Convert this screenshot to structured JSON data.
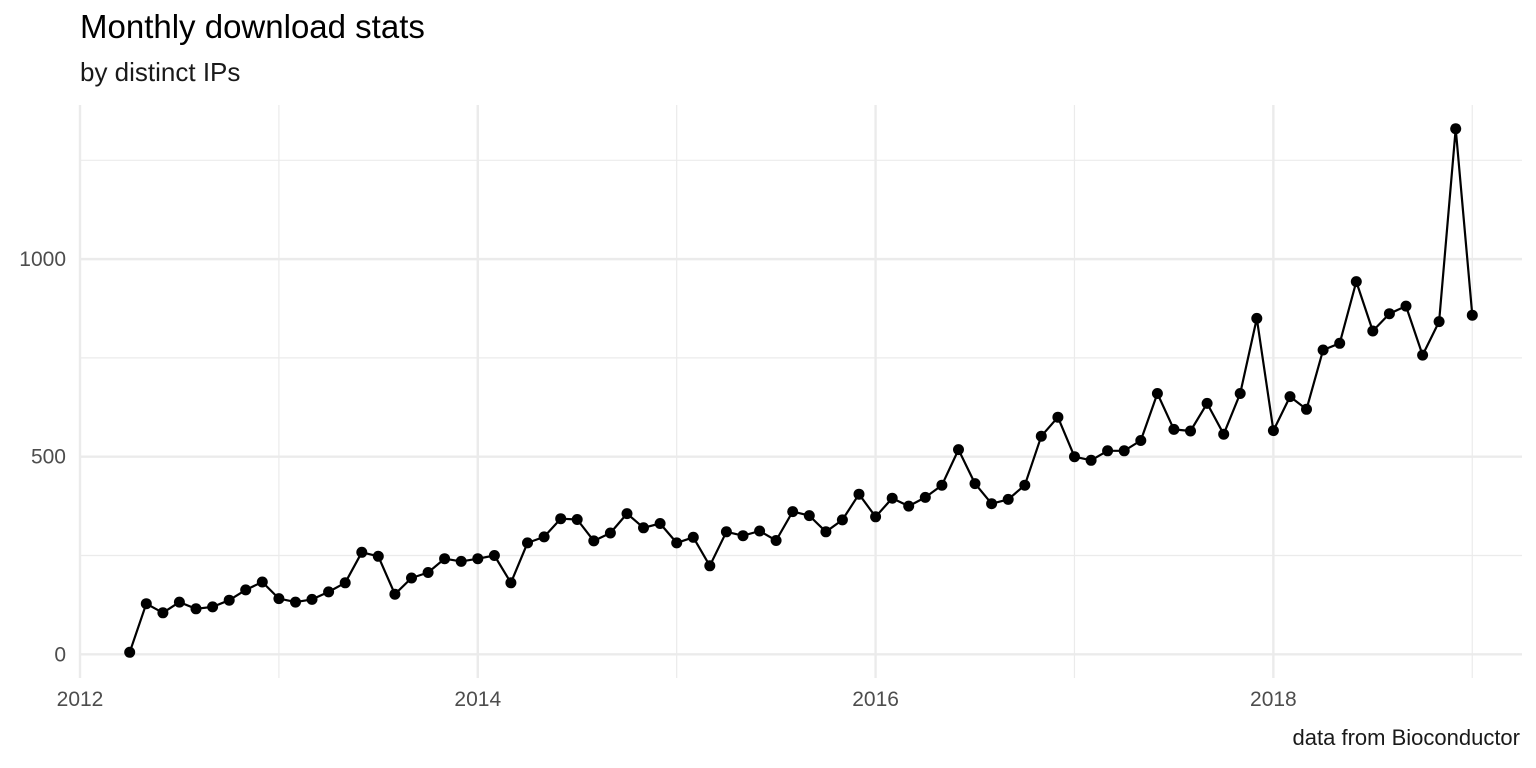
{
  "chart_data": {
    "type": "line",
    "title": "Monthly download stats",
    "subtitle": "by distinct IPs",
    "caption": "data from Bioconductor",
    "xlabel": "",
    "ylabel": "",
    "xlim": [
      "2012-01",
      "2019-04"
    ],
    "ylim": [
      -60,
      1390
    ],
    "x_ticks": [
      2012,
      2014,
      2016,
      2018
    ],
    "y_ticks": [
      0,
      500,
      1000
    ],
    "grid": true,
    "markers": true,
    "line_color": "#000000",
    "grid_color": "#ebebeb",
    "series": [
      {
        "x": [
          "2012-04",
          "2012-05",
          "2012-06",
          "2012-07",
          "2012-08",
          "2012-09",
          "2012-10",
          "2012-11",
          "2012-12",
          "2013-01",
          "2013-02",
          "2013-03",
          "2013-04",
          "2013-05",
          "2013-06",
          "2013-07",
          "2013-08",
          "2013-09",
          "2013-10",
          "2013-11",
          "2013-12",
          "2014-01",
          "2014-02",
          "2014-03",
          "2014-04",
          "2014-05",
          "2014-06",
          "2014-07",
          "2014-08",
          "2014-09",
          "2014-10",
          "2014-11",
          "2014-12",
          "2015-01",
          "2015-02",
          "2015-03",
          "2015-04",
          "2015-05",
          "2015-06",
          "2015-07",
          "2015-08",
          "2015-09",
          "2015-10",
          "2015-11",
          "2015-12",
          "2016-01",
          "2016-02",
          "2016-03",
          "2016-04",
          "2016-05",
          "2016-06",
          "2016-07",
          "2016-08",
          "2016-09",
          "2016-10",
          "2016-11",
          "2016-12",
          "2017-01",
          "2017-02",
          "2017-03",
          "2017-04",
          "2017-05",
          "2017-06",
          "2017-07",
          "2017-08",
          "2017-09",
          "2017-10",
          "2017-11",
          "2017-12",
          "2018-01",
          "2018-02",
          "2018-03",
          "2018-04",
          "2018-05",
          "2018-06",
          "2018-07",
          "2018-08",
          "2018-09",
          "2018-10",
          "2018-11",
          "2018-12",
          "2019-01"
        ],
        "values": [
          5,
          128,
          105,
          132,
          115,
          120,
          137,
          163,
          183,
          141,
          132,
          139,
          158,
          181,
          258,
          248,
          152,
          193,
          207,
          242,
          235,
          242,
          250,
          181,
          282,
          297,
          343,
          341,
          287,
          307,
          356,
          320,
          331,
          282,
          296,
          224,
          310,
          300,
          312,
          288,
          361,
          351,
          310,
          340,
          405,
          348,
          395,
          375,
          397,
          428,
          518,
          432,
          381,
          392,
          428,
          552,
          600,
          500,
          491,
          515,
          515,
          541,
          660,
          569,
          565,
          635,
          557,
          660,
          850,
          566,
          652,
          620,
          770,
          787,
          943,
          818,
          862,
          881,
          757,
          842,
          1330,
          858
        ]
      }
    ]
  }
}
